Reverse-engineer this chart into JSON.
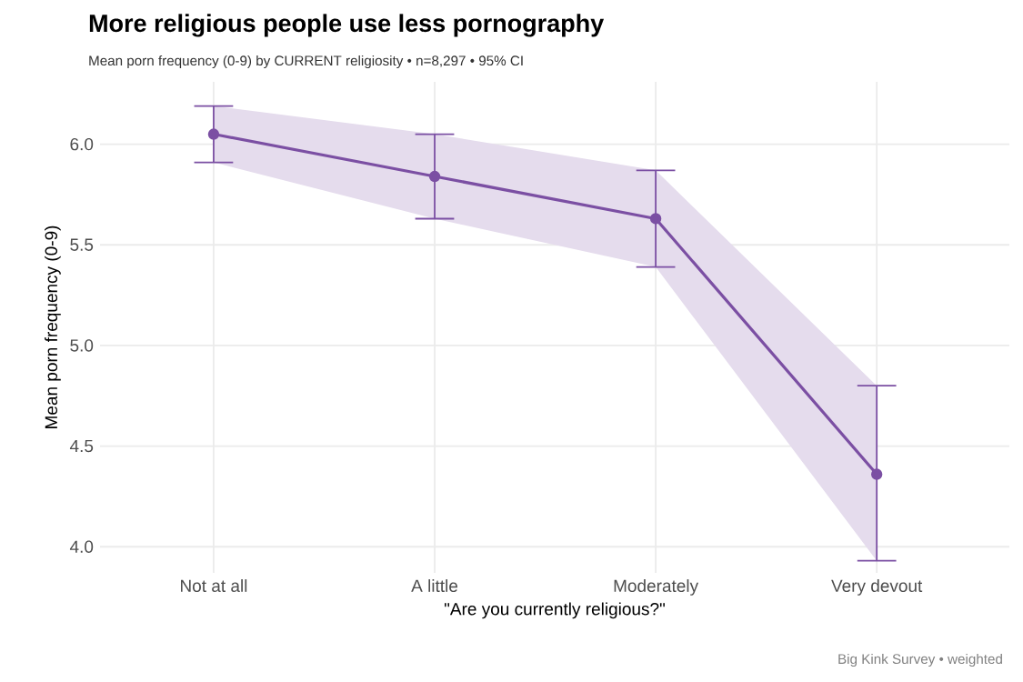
{
  "chart_data": {
    "type": "line",
    "title": "More religious people use less pornography",
    "subtitle": "Mean porn frequency (0-9) by CURRENT religiosity  •  n=8,297  •  95% CI",
    "xlabel": "\"Are you currently religious?\"",
    "ylabel": "Mean porn frequency (0-9)",
    "annotations": [
      "Big Kink Survey  •  weighted"
    ],
    "categories": [
      "Not at all",
      "A little",
      "Moderately",
      "Very devout"
    ],
    "series": [
      {
        "color": "#7b4fa3",
        "values": [
          6.05,
          5.84,
          5.63,
          4.36
        ],
        "errors": [
          [
            5.91,
            6.19
          ],
          [
            5.63,
            6.05
          ],
          [
            5.39,
            5.87
          ],
          [
            3.93,
            4.8
          ]
        ],
        "lower": [
          5.91,
          5.63,
          5.39,
          3.93
        ],
        "upper": [
          6.19,
          6.05,
          5.87,
          4.8
        ]
      }
    ],
    "ylim": [
      3.87,
      6.31
    ],
    "yticks": [
      {
        "value": 4.0,
        "label": "4.0"
      },
      {
        "value": 4.5,
        "label": "4.5"
      },
      {
        "value": 5.0,
        "label": "5.0"
      },
      {
        "value": 5.5,
        "label": "5.5"
      },
      {
        "value": 6.0,
        "label": "6.0"
      }
    ],
    "grid": true,
    "marker": "circle",
    "line_style": "solid"
  }
}
